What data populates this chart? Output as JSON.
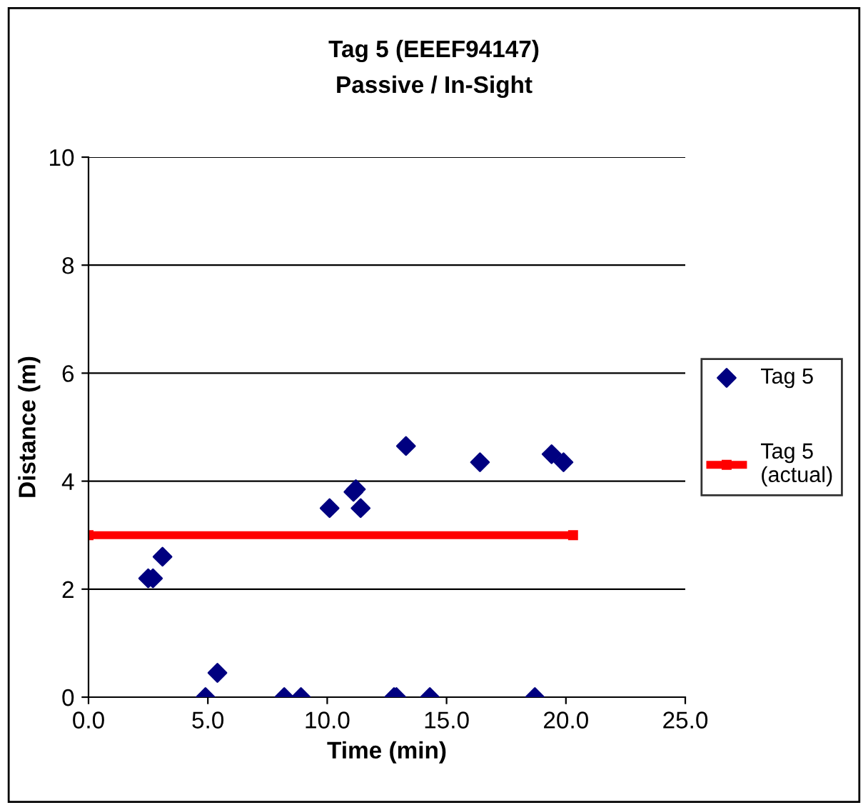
{
  "chart_data": {
    "type": "scatter",
    "title": "Tag 5 (EEEF94147)",
    "subtitle": "Passive / In-Sight",
    "xlabel": "Time (min)",
    "ylabel": "Distance (m)",
    "xlim": [
      0,
      25
    ],
    "xticks": [
      {
        "value": 0,
        "label": "0.0"
      },
      {
        "value": 5,
        "label": "5.0"
      },
      {
        "value": 10,
        "label": "10.0"
      },
      {
        "value": 15,
        "label": "15.0"
      },
      {
        "value": 20,
        "label": "20.0"
      },
      {
        "value": 25,
        "label": "25.0"
      }
    ],
    "ylim": [
      0,
      10
    ],
    "yticks": [
      0,
      2,
      4,
      6,
      8,
      10
    ],
    "grid": "y",
    "legend": "right",
    "series": [
      {
        "name": "Tag 5",
        "marker": "diamond",
        "color": "#000080",
        "x": [
          2.5,
          2.7,
          3.1,
          4.9,
          5.4,
          8.2,
          8.9,
          10.1,
          11.1,
          11.2,
          11.4,
          12.8,
          12.9,
          13.3,
          14.3,
          16.4,
          18.7,
          19.4,
          19.9
        ],
        "values": [
          2.2,
          2.2,
          2.6,
          0,
          0.45,
          0,
          0,
          3.5,
          3.8,
          3.85,
          3.5,
          0,
          0,
          4.65,
          0,
          4.35,
          0,
          4.5,
          4.35
        ]
      },
      {
        "name": "Tag 5\n(actual)",
        "type": "line",
        "marker": "square",
        "color": "#ff0000",
        "x": [
          0,
          20.3
        ],
        "values": [
          3,
          3
        ]
      }
    ]
  }
}
